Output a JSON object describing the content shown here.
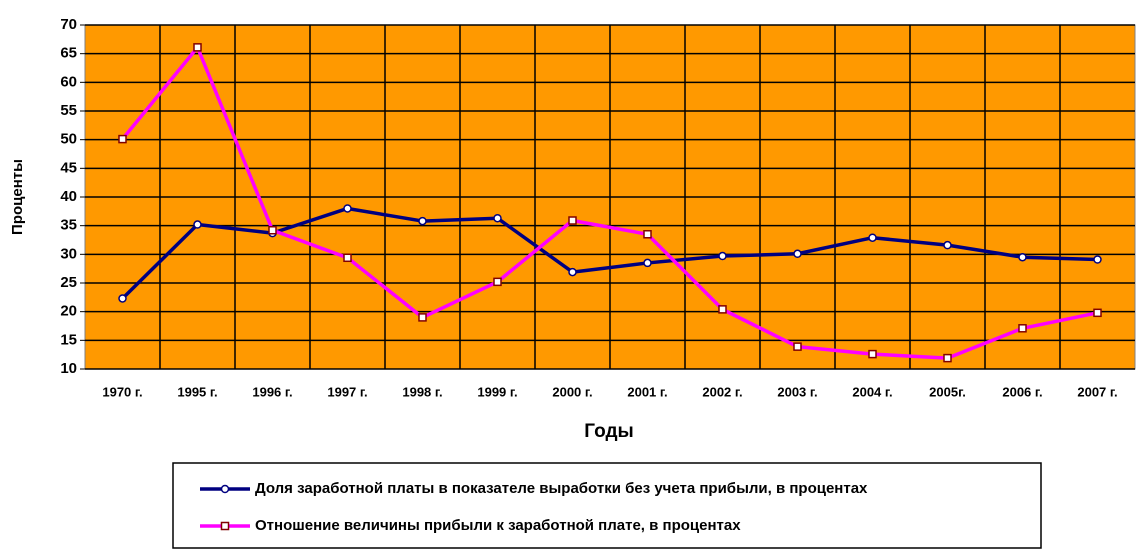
{
  "chart_data": {
    "type": "line",
    "x_label": "Годы",
    "y_label": "Проценты",
    "categories": [
      "1970 г.",
      "1995 г.",
      "1996 г.",
      "1997 г.",
      "1998 г.",
      "1999 г.",
      "2000 г.",
      "2001 г.",
      "2002 г.",
      "2003 г.",
      "2004 г.",
      "2005г.",
      "2006 г.",
      "2007 г."
    ],
    "series": [
      {
        "name": "Доля заработной платы в показателе выработки без учета прибыли, в процентах",
        "color": "#000080",
        "marker": "circle",
        "marker_color": "#000080",
        "values": [
          22.3,
          35.2,
          33.7,
          38.0,
          35.8,
          36.3,
          26.9,
          28.5,
          29.7,
          30.1,
          32.9,
          31.6,
          29.5,
          29.1
        ]
      },
      {
        "name": "Отношение величины прибыли к заработной плате, в процентах",
        "color": "#FF00FF",
        "marker": "square",
        "marker_color": "#800000",
        "values": [
          50.1,
          66.1,
          34.2,
          29.4,
          19.0,
          25.2,
          35.9,
          33.5,
          20.4,
          13.9,
          12.6,
          11.9,
          17.1,
          19.8
        ]
      }
    ],
    "ylim": [
      10,
      70
    ],
    "yticks": [
      10,
      15,
      20,
      25,
      30,
      35,
      40,
      45,
      50,
      55,
      60,
      65,
      70
    ],
    "grid": true,
    "plot_background": "#FF9900",
    "legend": "bottom"
  }
}
